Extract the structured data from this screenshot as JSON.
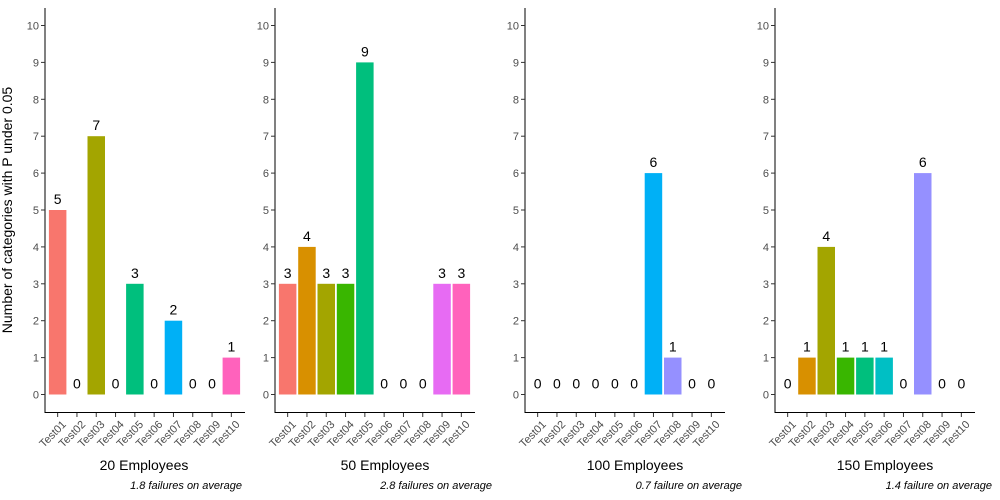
{
  "chart_data": {
    "type": "bar",
    "ylabel": "Number of categories with P under 0.05",
    "ylim": [
      0,
      10
    ],
    "yticks": [
      "0",
      "1",
      "2",
      "3",
      "4",
      "5",
      "6",
      "7",
      "8",
      "9",
      "10"
    ],
    "categories": [
      "Test01",
      "Test02",
      "Test03",
      "Test04",
      "Test05",
      "Test06",
      "Test07",
      "Test08",
      "Test09",
      "Test10"
    ],
    "colors": [
      "#F8766D",
      "#D89000",
      "#A3A500",
      "#39B600",
      "#00BF7D",
      "#00BFC4",
      "#00B0F6",
      "#9590FF",
      "#E76BF3",
      "#FF62BC"
    ],
    "grid": false,
    "panels": [
      {
        "xlabel": "20 Employees",
        "caption": "1.8 failures on average",
        "values": [
          5,
          0,
          7,
          0,
          3,
          0,
          2,
          0,
          0,
          1
        ],
        "value_labels": [
          "5",
          "0",
          "7",
          "0",
          "3",
          "0",
          "2",
          "0",
          "0",
          "1"
        ]
      },
      {
        "xlabel": "50 Employees",
        "caption": "2.8 failures on average",
        "values": [
          3,
          4,
          3,
          3,
          9,
          0,
          0,
          0,
          3,
          3
        ],
        "value_labels": [
          "3",
          "4",
          "3",
          "3",
          "9",
          "0",
          "0",
          "0",
          "3",
          "3"
        ]
      },
      {
        "xlabel": "100 Employees",
        "caption": "0.7 failure on average",
        "values": [
          0,
          0,
          0,
          0,
          0,
          0,
          6,
          1,
          0,
          0
        ],
        "value_labels": [
          "0",
          "0",
          "0",
          "0",
          "0",
          "0",
          "6",
          "1",
          "0",
          "0"
        ]
      },
      {
        "xlabel": "150 Employees",
        "caption": "1.4 failure on average",
        "values": [
          0,
          1,
          4,
          1,
          1,
          1,
          0,
          6,
          0,
          0
        ],
        "value_labels": [
          "0",
          "1",
          "4",
          "1",
          "1",
          "1",
          "0",
          "6",
          "0",
          "0"
        ]
      }
    ]
  }
}
